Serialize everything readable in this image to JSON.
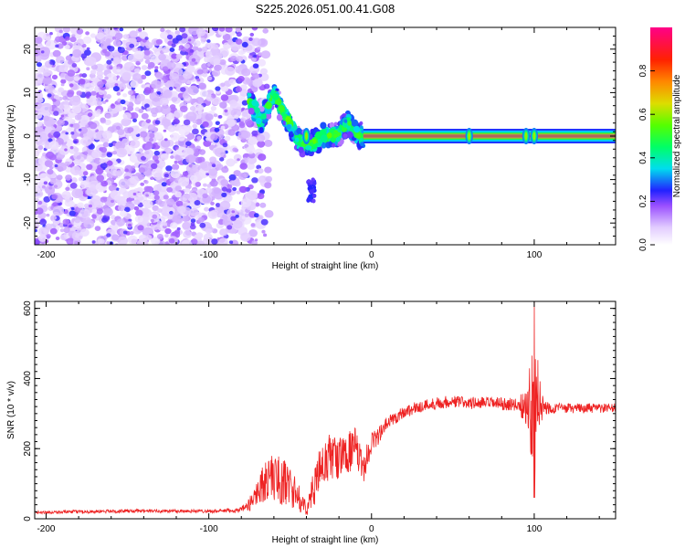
{
  "title": "S225.2026.051.00.41.G08",
  "colors": {
    "snr_line": "#ee2222",
    "axis": "#000000"
  },
  "chart_data": [
    {
      "type": "heatmap",
      "name": "spectrogram",
      "title": "S225.2026.051.00.41.G08",
      "xlabel": "Height of straight line (km)",
      "ylabel": "Frequency (Hz)",
      "xlim": [
        -207,
        150
      ],
      "ylim": [
        -25,
        25
      ],
      "xticks": [
        -200,
        -100,
        0,
        100
      ],
      "xtick_labels": [
        "-200",
        "-100",
        "0",
        "100"
      ],
      "yticks": [
        -20,
        -10,
        0,
        10,
        20
      ],
      "ytick_labels": [
        "-20",
        "-10",
        "0",
        "10",
        "20"
      ],
      "noise_region_km": [
        -207,
        -75
      ],
      "scintillation_region_km": [
        -75,
        -5
      ],
      "tone_frequency_hz": 0,
      "tone_start_km": -5,
      "tone_amplitude": 1.0,
      "excursions": [
        {
          "km": -74,
          "hz": 8
        },
        {
          "km": -68,
          "hz": 3
        },
        {
          "km": -60,
          "hz": 10
        },
        {
          "km": -55,
          "hz": 6
        },
        {
          "km": -50,
          "hz": 3
        },
        {
          "km": -45,
          "hz": -1
        },
        {
          "km": -38,
          "hz": -2
        },
        {
          "km": -30,
          "hz": 0
        },
        {
          "km": -22,
          "hz": 0
        },
        {
          "km": -14,
          "hz": 3
        },
        {
          "km": -8,
          "hz": 0
        }
      ],
      "bursts_km": [
        -40,
        60,
        95,
        100
      ],
      "colorbar": {
        "label": "Normalized spectral amplitude",
        "range": [
          0,
          1
        ],
        "ticks": [
          0.0,
          0.2,
          0.4,
          0.6,
          0.8
        ],
        "tick_labels": [
          "0.0",
          "0.2",
          "0.4",
          "0.6",
          "0.8"
        ]
      }
    },
    {
      "type": "line",
      "name": "snr",
      "xlabel": "Height of straight line (km)",
      "ylabel": "SNR (10 * v/v)",
      "xlim": [
        -207,
        150
      ],
      "ylim": [
        0,
        620
      ],
      "xticks": [
        -200,
        -100,
        0,
        100
      ],
      "xtick_labels": [
        "-200",
        "-100",
        "0",
        "100"
      ],
      "yticks": [
        0,
        200,
        400,
        600
      ],
      "ytick_labels": [
        "0",
        "200",
        "400",
        "600"
      ],
      "series": [
        {
          "name": "SNR",
          "x": [
            -207,
            -180,
            -150,
            -120,
            -95,
            -80,
            -75,
            -70,
            -65,
            -60,
            -55,
            -50,
            -45,
            -42,
            -40,
            -38,
            -35,
            -30,
            -25,
            -20,
            -15,
            -10,
            -5,
            0,
            5,
            10,
            20,
            30,
            40,
            50,
            60,
            70,
            80,
            90,
            95,
            100,
            105,
            110,
            120,
            130,
            140,
            150
          ],
          "y": [
            18,
            20,
            22,
            22,
            22,
            25,
            40,
            80,
            110,
            120,
            105,
            95,
            60,
            40,
            30,
            50,
            100,
            150,
            180,
            170,
            190,
            200,
            140,
            220,
            240,
            275,
            305,
            320,
            330,
            335,
            330,
            330,
            328,
            325,
            320,
            330,
            320,
            315,
            315,
            315,
            315,
            315
          ],
          "noise": [
            4,
            5,
            5,
            5,
            5,
            8,
            20,
            40,
            60,
            70,
            70,
            60,
            40,
            30,
            20,
            30,
            60,
            70,
            70,
            60,
            60,
            60,
            40,
            35,
            25,
            20,
            18,
            18,
            18,
            18,
            18,
            18,
            18,
            18,
            60,
            200,
            40,
            15,
            14,
            14,
            14,
            14
          ]
        }
      ],
      "peak": {
        "x": 100,
        "y": 620
      },
      "dip": {
        "x": 100,
        "y": 60
      }
    }
  ]
}
